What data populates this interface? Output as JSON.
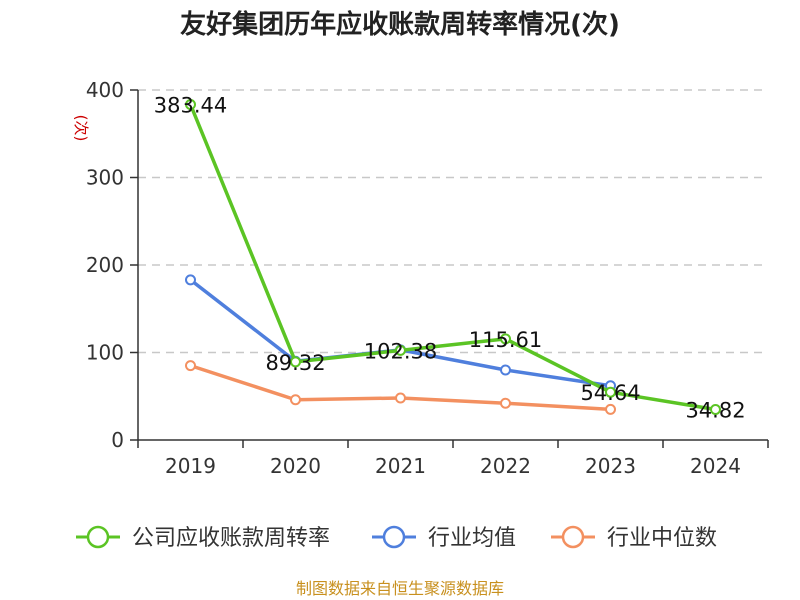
{
  "chart_data": {
    "type": "line",
    "title": "友好集团历年应收账款周转率情况(次)",
    "ylabel": "(次)",
    "xlabel": "",
    "categories": [
      "2019",
      "2020",
      "2021",
      "2022",
      "2023",
      "2024"
    ],
    "ylim": [
      0,
      400
    ],
    "yticks": [
      0,
      100,
      200,
      300,
      400
    ],
    "grid": true,
    "legend_position": "bottom",
    "series": [
      {
        "name": "公司应收账款周转率",
        "color": "#5bc424",
        "values": [
          383.44,
          89.32,
          102.38,
          115.61,
          54.64,
          34.82
        ],
        "labels": [
          "383.44",
          "89.32",
          "102.38",
          "115.61",
          "54.64",
          "34.82"
        ]
      },
      {
        "name": "行业均值",
        "color": "#4f7fdd",
        "values": [
          183,
          90,
          103,
          80,
          62,
          null
        ]
      },
      {
        "name": "行业中位数",
        "color": "#f39060",
        "values": [
          85,
          46,
          48,
          42,
          35,
          null
        ]
      }
    ]
  },
  "source_note": "制图数据来自恒生聚源数据库"
}
